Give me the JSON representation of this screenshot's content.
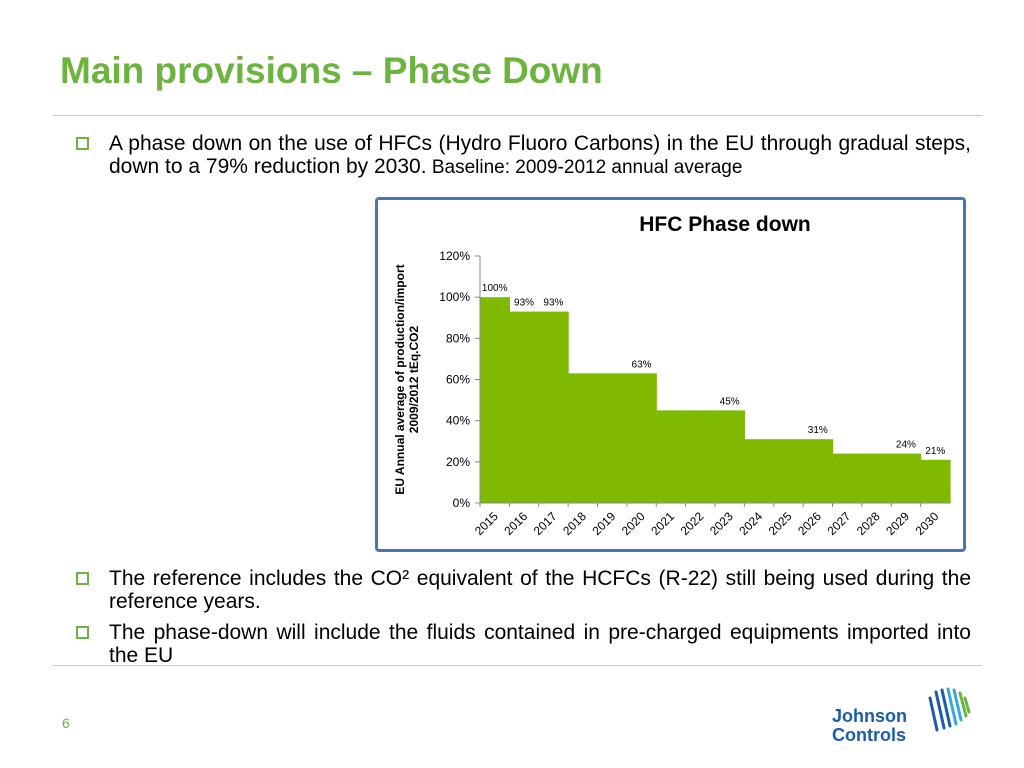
{
  "slide": {
    "title": "Main provisions – Phase Down",
    "page_number": "6"
  },
  "bullets": [
    {
      "text_main": "A phase down on the use of HFCs (Hydro Fluoro Carbons) in the EU through gradual steps, down to a 79% reduction by 2030.",
      "text_small": " Baseline: 2009-2012 annual average"
    },
    {
      "text": "The reference includes the CO² equivalent of the HCFCs (R-22) still being used during the reference years."
    },
    {
      "text": "The phase-down will include the fluids contained in pre-charged equipments imported into the EU"
    }
  ],
  "logo": {
    "line1": "Johnson",
    "line2": "Controls",
    "icon": "johnson-controls-logo-icon"
  },
  "colors": {
    "accent": "#6cb33f",
    "bar": "#7fba00",
    "frame": "#4a76b5",
    "logo": "#1b5daa"
  },
  "chart_data": {
    "type": "area",
    "step": true,
    "title": "HFC Phase down",
    "ylabel_line1": "EU Annual  average of production/import",
    "ylabel_line2": "2009/2012            tEq.CO2",
    "categories": [
      "2015",
      "2016",
      "2017",
      "2018",
      "2019",
      "2020",
      "2021",
      "2022",
      "2023",
      "2024",
      "2025",
      "2026",
      "2027",
      "2028",
      "2029",
      "2030"
    ],
    "values": [
      100,
      93,
      93,
      63,
      63,
      63,
      45,
      45,
      45,
      31,
      31,
      31,
      24,
      24,
      24,
      21
    ],
    "data_labels": [
      {
        "index": 0,
        "text": "100%"
      },
      {
        "index": 1,
        "text": "93%"
      },
      {
        "index": 2,
        "text": "93%"
      },
      {
        "index": 5,
        "text": "63%"
      },
      {
        "index": 8,
        "text": "45%"
      },
      {
        "index": 11,
        "text": "31%"
      },
      {
        "index": 14,
        "text": "24%"
      },
      {
        "index": 15,
        "text": "21%"
      }
    ],
    "yticks": [
      "0%",
      "20%",
      "40%",
      "60%",
      "80%",
      "100%",
      "120%"
    ],
    "ylim": [
      0,
      120
    ],
    "grid": false,
    "legend": "none"
  }
}
